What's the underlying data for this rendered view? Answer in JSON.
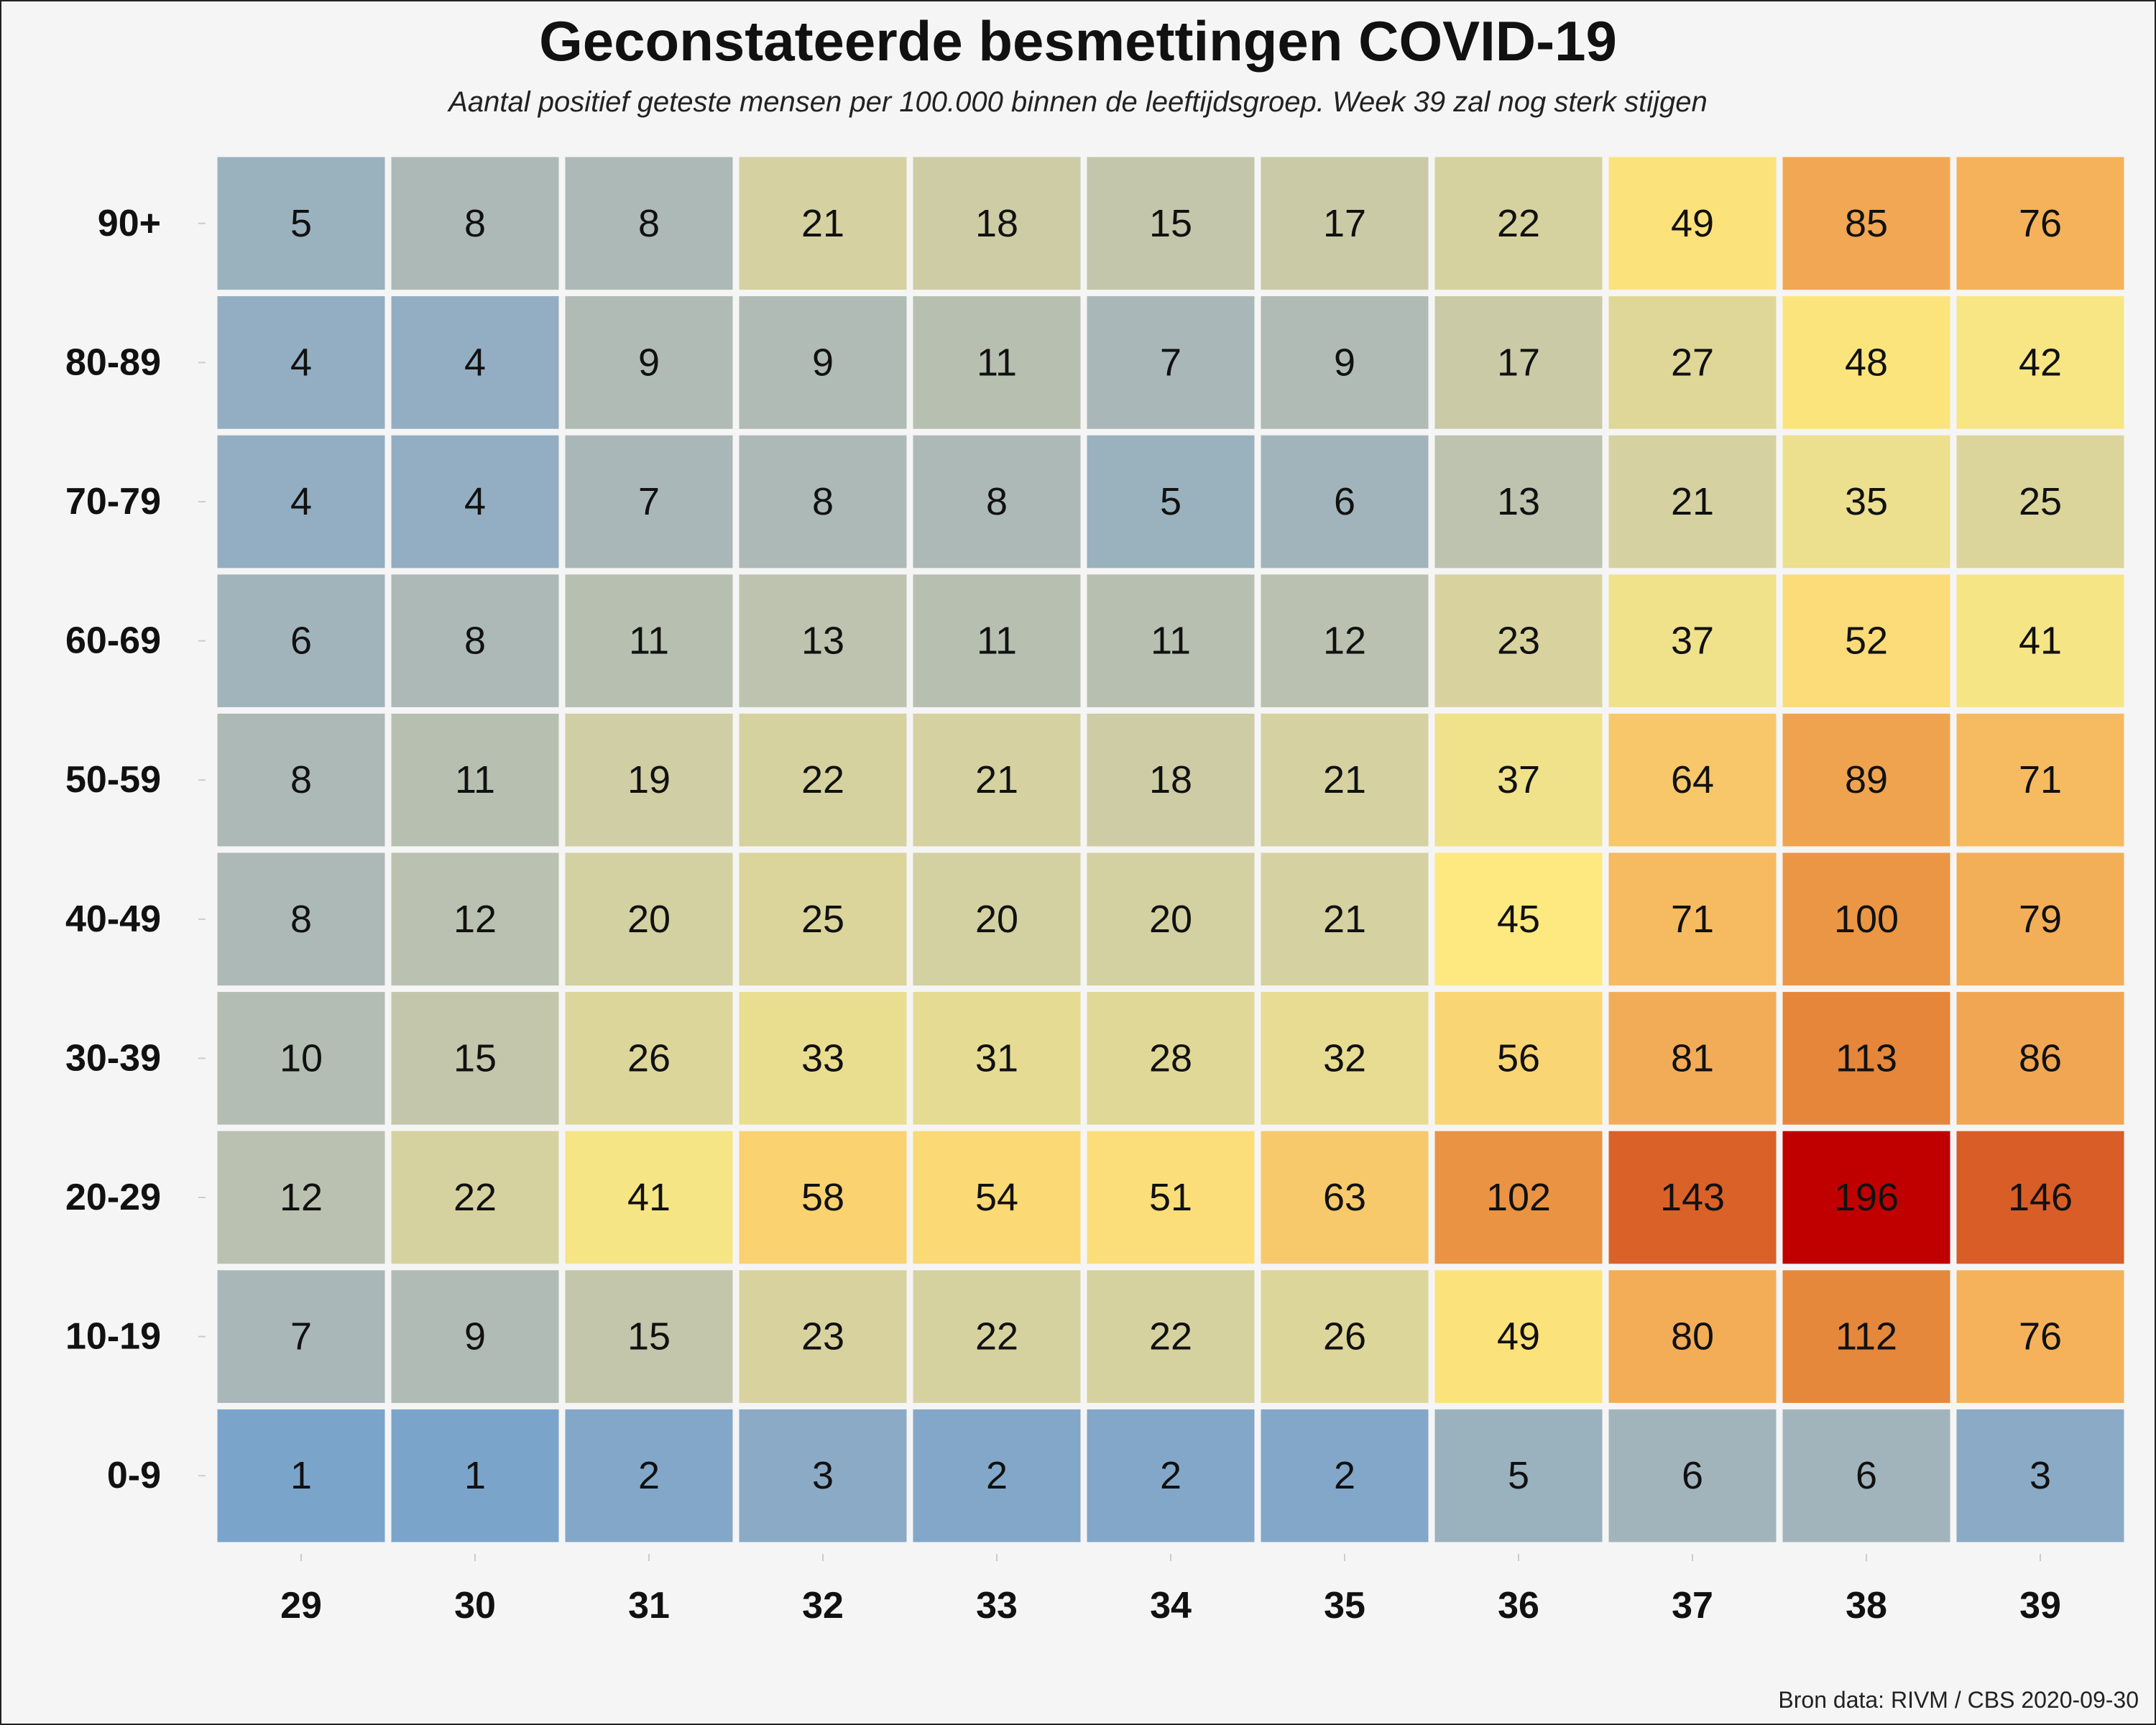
{
  "chart_data": {
    "type": "heatmap",
    "title": "Geconstateerde besmettingen COVID-19",
    "subtitle": "Aantal positief geteste mensen per 100.000 binnen de leeftijdsgroep. Week 39 zal nog sterk stijgen",
    "source": "Bron data: RIVM / CBS  2020-09-30",
    "x": [
      "29",
      "30",
      "31",
      "32",
      "33",
      "34",
      "35",
      "36",
      "37",
      "38",
      "39"
    ],
    "y": [
      "90+",
      "80-89",
      "70-79",
      "60-69",
      "50-59",
      "40-49",
      "30-39",
      "20-29",
      "10-19",
      "0-9"
    ],
    "values": [
      [
        5,
        8,
        8,
        21,
        18,
        15,
        17,
        22,
        49,
        85,
        76
      ],
      [
        4,
        4,
        9,
        9,
        11,
        7,
        9,
        17,
        27,
        48,
        42
      ],
      [
        4,
        4,
        7,
        8,
        8,
        5,
        6,
        13,
        21,
        35,
        25
      ],
      [
        6,
        8,
        11,
        13,
        11,
        11,
        12,
        23,
        37,
        52,
        41
      ],
      [
        8,
        11,
        19,
        22,
        21,
        18,
        21,
        37,
        64,
        89,
        71
      ],
      [
        8,
        12,
        20,
        25,
        20,
        20,
        21,
        45,
        71,
        100,
        79
      ],
      [
        10,
        15,
        26,
        33,
        31,
        28,
        32,
        56,
        81,
        113,
        86
      ],
      [
        12,
        22,
        41,
        58,
        54,
        51,
        63,
        102,
        143,
        196,
        146
      ],
      [
        7,
        9,
        15,
        23,
        22,
        22,
        26,
        49,
        80,
        112,
        76
      ],
      [
        1,
        1,
        2,
        3,
        2,
        2,
        2,
        5,
        6,
        6,
        3
      ]
    ],
    "color_scale": {
      "stops": [
        {
          "value": 1,
          "color": "#7ba4cb"
        },
        {
          "value": 7,
          "color": "#aab7b8"
        },
        {
          "value": 20,
          "color": "#d3d0a2"
        },
        {
          "value": 45,
          "color": "#fde980"
        },
        {
          "value": 75,
          "color": "#f5b35c"
        },
        {
          "value": 110,
          "color": "#e68a3c"
        },
        {
          "value": 145,
          "color": "#d95f27"
        },
        {
          "value": 196,
          "color": "#c00000"
        }
      ]
    },
    "grid": false,
    "legend": "none"
  }
}
